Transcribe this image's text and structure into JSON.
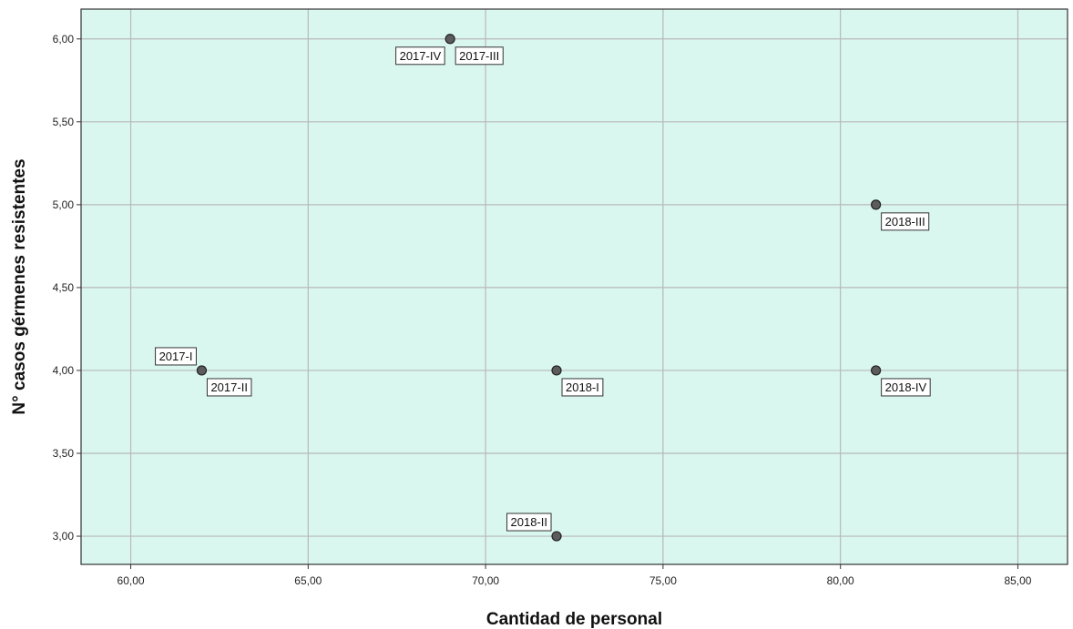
{
  "chart_data": {
    "type": "scatter",
    "xlabel": "Cantidad de personal",
    "ylabel": "N° casos gérmenes resistentes",
    "xlim": [
      58.6,
      86.4
    ],
    "ylim": [
      2.83,
      6.18
    ],
    "xticks": [
      "60,00",
      "65,00",
      "70,00",
      "75,00",
      "80,00",
      "85,00"
    ],
    "xtick_values": [
      60,
      65,
      70,
      75,
      80,
      85
    ],
    "yticks": [
      "3,00",
      "3,50",
      "4,00",
      "4,50",
      "5,00",
      "5,50",
      "6,00"
    ],
    "ytick_values": [
      3,
      3.5,
      4,
      4.5,
      5,
      5.5,
      6
    ],
    "grid": true,
    "colors": {
      "plot_background": "#d9f7ef",
      "gridline": "#b9b9b9",
      "marker_fill": "#5c5c5c",
      "marker_stroke": "#222222"
    },
    "points": [
      {
        "x": 62,
        "y": 4,
        "labels": [
          {
            "text": "2017-I",
            "position": "upper-left"
          },
          {
            "text": "2017-II",
            "position": "lower-right"
          }
        ]
      },
      {
        "x": 69,
        "y": 6,
        "labels": [
          {
            "text": "2017-IV",
            "position": "lower-left"
          },
          {
            "text": "2017-III",
            "position": "lower-right"
          }
        ]
      },
      {
        "x": 72,
        "y": 4,
        "labels": [
          {
            "text": "2018-I",
            "position": "lower-right"
          }
        ]
      },
      {
        "x": 72,
        "y": 3,
        "labels": [
          {
            "text": "2018-II",
            "position": "upper-left"
          }
        ]
      },
      {
        "x": 81,
        "y": 5,
        "labels": [
          {
            "text": "2018-III",
            "position": "lower-right"
          }
        ]
      },
      {
        "x": 81,
        "y": 4,
        "labels": [
          {
            "text": "2018-IV",
            "position": "lower-right"
          }
        ]
      }
    ]
  }
}
